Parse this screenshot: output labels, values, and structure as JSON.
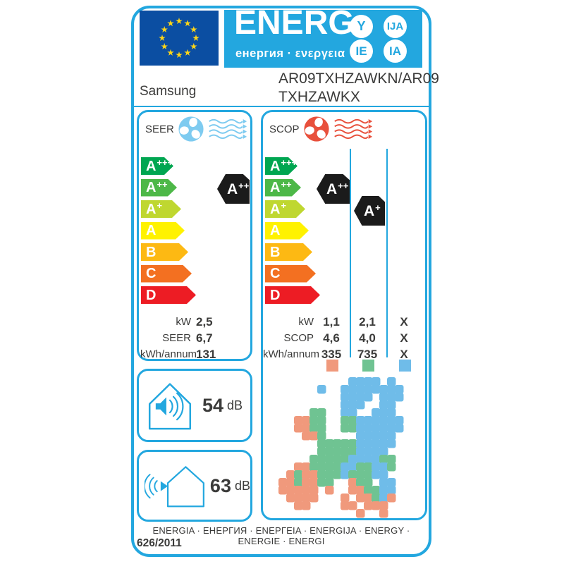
{
  "colors": {
    "accent_blue": "#23A7DF",
    "flag_blue": "#0B4EA2",
    "star_yellow": "#FFD617",
    "seer_icon": "#7ECBF0",
    "scop_icon": "#E8503C",
    "indicator_black": "#1B1B1B",
    "text": "#3B3B3A"
  },
  "header": {
    "energ_text": "ENERG",
    "energ_sub": "енергия · ενεργεια",
    "badges": [
      "Y",
      "IJA",
      "IE",
      "IA"
    ],
    "brand": "Samsung",
    "model_line1": "AR09TXHZAWKN/AR09",
    "model_line2": "TXHZAWKX"
  },
  "scale": {
    "grades": [
      {
        "letter": "A",
        "sup": "+++",
        "color": "#00A651",
        "width": 46
      },
      {
        "letter": "A",
        "sup": "++",
        "color": "#4DB848",
        "width": 51
      },
      {
        "letter": "A",
        "sup": "+",
        "color": "#BFD730",
        "width": 57
      },
      {
        "letter": "A",
        "sup": "",
        "color": "#FFF200",
        "width": 62
      },
      {
        "letter": "B",
        "sup": "",
        "color": "#FDB913",
        "width": 67
      },
      {
        "letter": "C",
        "sup": "",
        "color": "#F37021",
        "width": 72
      },
      {
        "letter": "D",
        "sup": "",
        "color": "#ED1C24",
        "width": 78
      }
    ]
  },
  "seer_panel": {
    "title": "SEER",
    "indicator": {
      "letter": "A",
      "sup": "++"
    },
    "values": [
      {
        "label": "kW",
        "value": "2,5"
      },
      {
        "label": "SEER",
        "value": "6,7"
      },
      {
        "label": "kWh/annum",
        "value": "131"
      }
    ]
  },
  "scop_panel": {
    "title": "SCOP",
    "indicators": [
      {
        "letter": "A",
        "sup": "++"
      },
      {
        "letter": "A",
        "sup": "+"
      }
    ],
    "table": [
      {
        "label": "kW",
        "cols": [
          "1,1",
          "2,1",
          "X"
        ]
      },
      {
        "label": "SCOP",
        "cols": [
          "4,6",
          "4,0",
          "X"
        ]
      },
      {
        "label": "kWh/annum",
        "cols": [
          "335",
          "735",
          "X"
        ]
      }
    ],
    "legend_colors": [
      "#F0997C",
      "#6FC392",
      "#6FBCE9"
    ]
  },
  "noise": {
    "indoor": {
      "value": "54",
      "unit": "dB"
    },
    "outdoor": {
      "value": "63",
      "unit": "dB"
    }
  },
  "footer": {
    "strip": "ENERGIA · ЕНЕРГИЯ · ΕΝΕΡΓΕΙΑ · ENERGIJA · ENERGY · ENERGIE · ENERGI",
    "regulation": "626/2011"
  },
  "map": {
    "palette": {
      "S": "#F0997C",
      "G": "#6FC392",
      "B": "#6FBCE9"
    },
    "cell": 11,
    "rows": [
      ".........BBBB.B.",
      ".....B..BBBBBBBB",
      "........BBBB.BBB",
      "........BBB..BB.",
      "....GG..BB..BBB.",
      "..SSGG..GGBBBBBB",
      "..SSGG..GGBBBBBB",
      "...SSG....BBBBB.",
      ".....GGGGGBBBBB.",
      ".....GGGGGBBBB..",
      "....GGGGGBBBBGG.",
      "..SSGGGGBBGGBBG.",
      ".SGSSGGGBGGGBB..",
      "SSGSSGG..SGG.BB.",
      "SSSSS.S..SSGGBB.",
      ".SSSS...S.SSGBS.",
      "..SS....SS.SSS..",
      "..........S..S.."
    ]
  }
}
